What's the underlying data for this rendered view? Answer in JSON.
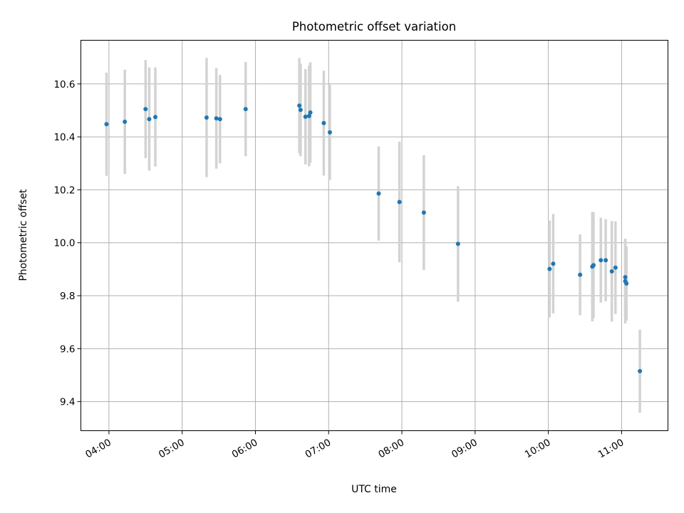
{
  "chart_data": {
    "type": "scatter",
    "title": "Photometric offset variation",
    "xlabel": "UTC time",
    "ylabel": "Photometric offset",
    "x_ticks": [
      "04:00",
      "05:00",
      "06:00",
      "07:00",
      "08:00",
      "09:00",
      "10:00",
      "11:00"
    ],
    "y_ticks": [
      "9.4",
      "9.6",
      "9.8",
      "10.0",
      "10.2",
      "10.4",
      "10.6"
    ],
    "xlim": [
      "03:37",
      "11:38"
    ],
    "ylim": [
      9.29,
      10.765
    ],
    "grid": true,
    "colors": {
      "marker": "#1f77b4",
      "errorbar": "#d3d3d3",
      "grid": "#b0b0b0"
    },
    "points": [
      {
        "x": "03:58",
        "y": 10.448,
        "err": 0.195
      },
      {
        "x": "04:13",
        "y": 10.457,
        "err": 0.197
      },
      {
        "x": "04:30",
        "y": 10.505,
        "err": 0.185
      },
      {
        "x": "04:33",
        "y": 10.467,
        "err": 0.195
      },
      {
        "x": "04:38",
        "y": 10.475,
        "err": 0.187
      },
      {
        "x": "05:20",
        "y": 10.473,
        "err": 0.225
      },
      {
        "x": "05:28",
        "y": 10.47,
        "err": 0.19
      },
      {
        "x": "05:31",
        "y": 10.467,
        "err": 0.167
      },
      {
        "x": "05:52",
        "y": 10.505,
        "err": 0.178
      },
      {
        "x": "06:36",
        "y": 10.518,
        "err": 0.18
      },
      {
        "x": "06:37",
        "y": 10.502,
        "err": 0.175
      },
      {
        "x": "06:41",
        "y": 10.476,
        "err": 0.18
      },
      {
        "x": "06:44",
        "y": 10.479,
        "err": 0.19
      },
      {
        "x": "06:45",
        "y": 10.492,
        "err": 0.19
      },
      {
        "x": "06:56",
        "y": 10.452,
        "err": 0.198
      },
      {
        "x": "07:01",
        "y": 10.417,
        "err": 0.18
      },
      {
        "x": "07:41",
        "y": 10.186,
        "err": 0.178
      },
      {
        "x": "07:58",
        "y": 10.154,
        "err": 0.228
      },
      {
        "x": "08:18",
        "y": 10.114,
        "err": 0.217
      },
      {
        "x": "08:46",
        "y": 9.996,
        "err": 0.218
      },
      {
        "x": "10:01",
        "y": 9.901,
        "err": 0.183
      },
      {
        "x": "10:04",
        "y": 9.921,
        "err": 0.188
      },
      {
        "x": "10:26",
        "y": 9.879,
        "err": 0.153
      },
      {
        "x": "10:36",
        "y": 9.91,
        "err": 0.207
      },
      {
        "x": "10:37",
        "y": 9.915,
        "err": 0.2
      },
      {
        "x": "10:43",
        "y": 9.934,
        "err": 0.16
      },
      {
        "x": "10:47",
        "y": 9.934,
        "err": 0.155
      },
      {
        "x": "10:52",
        "y": 9.892,
        "err": 0.19
      },
      {
        "x": "10:55",
        "y": 9.906,
        "err": 0.175
      },
      {
        "x": "11:03",
        "y": 9.87,
        "err": 0.145
      },
      {
        "x": "11:03",
        "y": 9.855,
        "err": 0.16
      },
      {
        "x": "11:04",
        "y": 9.846,
        "err": 0.14
      },
      {
        "x": "11:15",
        "y": 9.515,
        "err": 0.157
      }
    ]
  }
}
